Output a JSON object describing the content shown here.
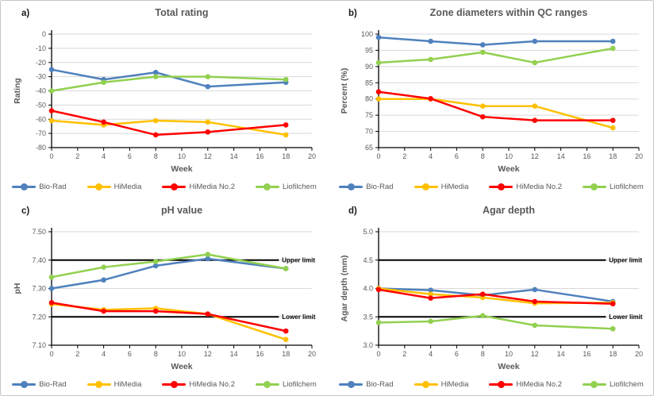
{
  "series_colors": {
    "Bio-Rad": "#4F81BD",
    "HiMedia": "#FFC000",
    "HiMedia No.2": "#FF0000",
    "Liofilchem": "#92D050"
  },
  "legend": {
    "entries": [
      "Bio-Rad",
      "HiMedia",
      "HiMedia No.2",
      "Liofilchem"
    ],
    "position": "bottom"
  },
  "xticks": [
    {
      "value": 0,
      "label": "0"
    },
    {
      "value": 2,
      "label": "2"
    },
    {
      "value": 4,
      "label": "4"
    },
    {
      "value": 6,
      "label": "6"
    },
    {
      "value": 8,
      "label": "8"
    },
    {
      "value": 10,
      "label": "10"
    },
    {
      "value": 12,
      "label": "12"
    },
    {
      "value": 14,
      "label": "14"
    },
    {
      "value": 16,
      "label": "16"
    },
    {
      "value": 18,
      "label": "18"
    },
    {
      "value": 20,
      "label": "20"
    }
  ],
  "chart_data": [
    {
      "type": "line",
      "panel_label": "a)",
      "title": "Total rating",
      "xlabel": "Week",
      "ylabel": "Rating",
      "xlim": [
        0,
        20
      ],
      "ylim": [
        -80,
        0
      ],
      "grid": "horizontal",
      "x": [
        0,
        4,
        8,
        12,
        18
      ],
      "yticks": [
        {
          "value": 0,
          "label": "0"
        },
        {
          "value": -10,
          "label": "-10"
        },
        {
          "value": -20,
          "label": "-20"
        },
        {
          "value": -30,
          "label": "-30"
        },
        {
          "value": -40,
          "label": "-40"
        },
        {
          "value": -50,
          "label": "-50"
        },
        {
          "value": -60,
          "label": "-60"
        },
        {
          "value": -70,
          "label": "-70"
        },
        {
          "value": -80,
          "label": "-80"
        }
      ],
      "series": [
        {
          "name": "Bio-Rad",
          "values": [
            -25,
            -32,
            -27,
            -37,
            -34
          ]
        },
        {
          "name": "HiMedia",
          "values": [
            -61,
            -64,
            -61,
            -62,
            -71
          ]
        },
        {
          "name": "HiMedia No.2",
          "values": [
            -54,
            -62,
            -71,
            -69,
            -64
          ]
        },
        {
          "name": "Liofilchem",
          "values": [
            -40,
            -34,
            -30,
            -30,
            -32
          ]
        }
      ],
      "limits": []
    },
    {
      "type": "line",
      "panel_label": "b)",
      "title": "Zone diameters within QC ranges",
      "xlabel": "Week",
      "ylabel": "Percent (%)",
      "xlim": [
        0,
        20
      ],
      "ylim": [
        65,
        100
      ],
      "grid": "horizontal",
      "x": [
        0,
        4,
        8,
        12,
        18
      ],
      "yticks": [
        {
          "value": 100,
          "label": "100"
        },
        {
          "value": 95,
          "label": "95"
        },
        {
          "value": 90,
          "label": "90"
        },
        {
          "value": 85,
          "label": "85"
        },
        {
          "value": 80,
          "label": "80"
        },
        {
          "value": 75,
          "label": "75"
        },
        {
          "value": 70,
          "label": "70"
        },
        {
          "value": 65,
          "label": "65"
        }
      ],
      "series": [
        {
          "name": "Bio-Rad",
          "values": [
            99,
            97.8,
            96.7,
            97.8,
            97.8
          ]
        },
        {
          "name": "HiMedia",
          "values": [
            80,
            80,
            77.8,
            77.8,
            71.1
          ]
        },
        {
          "name": "HiMedia No.2",
          "values": [
            82.2,
            80.1,
            74.5,
            73.4,
            73.4
          ]
        },
        {
          "name": "Liofilchem",
          "values": [
            91.2,
            92.2,
            94.4,
            91.2,
            95.6
          ]
        }
      ],
      "limits": []
    },
    {
      "type": "line",
      "panel_label": "c)",
      "title": "pH value",
      "xlabel": "Week",
      "ylabel": "pH",
      "xlim": [
        0,
        20
      ],
      "ylim": [
        7.1,
        7.5
      ],
      "grid": "horizontal",
      "x": [
        0,
        4,
        8,
        12,
        18
      ],
      "yticks": [
        {
          "value": 7.5,
          "label": "7.50"
        },
        {
          "value": 7.4,
          "label": "7.40"
        },
        {
          "value": 7.3,
          "label": "7.30"
        },
        {
          "value": 7.2,
          "label": "7.20"
        },
        {
          "value": 7.1,
          "label": "7.10"
        }
      ],
      "series": [
        {
          "name": "Bio-Rad",
          "values": [
            7.3,
            7.33,
            7.38,
            7.405,
            7.37
          ]
        },
        {
          "name": "HiMedia",
          "values": [
            7.245,
            7.225,
            7.23,
            7.21,
            7.12
          ]
        },
        {
          "name": "HiMedia No.2",
          "values": [
            7.25,
            7.22,
            7.22,
            7.21,
            7.15
          ]
        },
        {
          "name": "Liofilchem",
          "values": [
            7.34,
            7.375,
            7.395,
            7.42,
            7.37
          ]
        }
      ],
      "limits": [
        {
          "value": 7.4,
          "label": "Upper limit"
        },
        {
          "value": 7.2,
          "label": "Lower limit"
        }
      ]
    },
    {
      "type": "line",
      "panel_label": "d)",
      "title": "Agar depth",
      "xlabel": "Week",
      "ylabel": "Agar depth (mm)",
      "xlim": [
        0,
        20
      ],
      "ylim": [
        3.0,
        5.0
      ],
      "grid": "horizontal",
      "x": [
        0,
        4,
        8,
        12,
        18
      ],
      "yticks": [
        {
          "value": 5.0,
          "label": "5.0"
        },
        {
          "value": 4.5,
          "label": "4.5"
        },
        {
          "value": 4.0,
          "label": "4.0"
        },
        {
          "value": 3.5,
          "label": "3.5"
        },
        {
          "value": 3.0,
          "label": "3.0"
        }
      ],
      "series": [
        {
          "name": "Bio-Rad",
          "values": [
            4.0,
            3.97,
            3.88,
            3.98,
            3.77
          ]
        },
        {
          "name": "HiMedia",
          "values": [
            4.0,
            3.9,
            3.84,
            3.74,
            3.75
          ]
        },
        {
          "name": "HiMedia No.2",
          "values": [
            3.98,
            3.83,
            3.9,
            3.77,
            3.73
          ]
        },
        {
          "name": "Liofilchem",
          "values": [
            3.4,
            3.42,
            3.52,
            3.35,
            3.29
          ]
        }
      ],
      "limits": [
        {
          "value": 4.5,
          "label": "Upper limit"
        },
        {
          "value": 3.5,
          "label": "Lower limit"
        }
      ]
    }
  ]
}
